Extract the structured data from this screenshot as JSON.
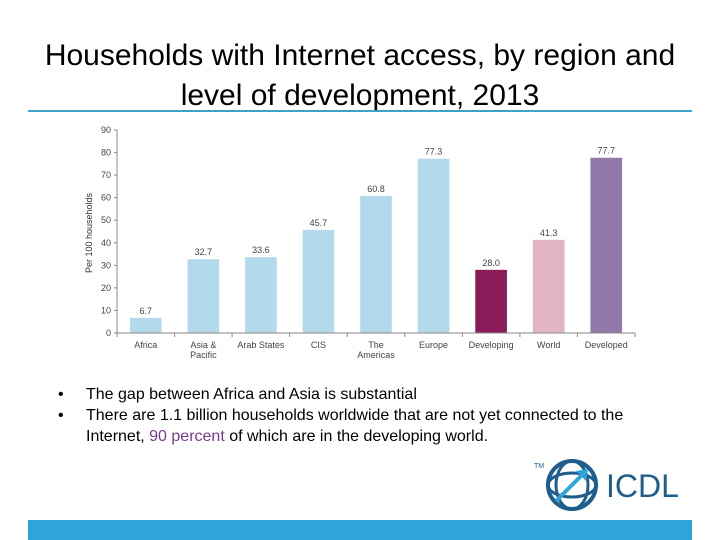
{
  "slide": {
    "title": "Households with Internet access, by region and level of development, 2013",
    "bullets": [
      {
        "text": "The gap between Africa and Asia is substantial"
      },
      {
        "before": "There are 1.1 billion households worldwide that are not yet connected to the Internet, ",
        "highlight": "90 percent",
        "after": " of which are in the developing world."
      }
    ],
    "logo": {
      "text": "ICDL",
      "tm": "TM",
      "icon": "globe-arrow-icon"
    }
  },
  "colors": {
    "region_bar": "#b3d9ec",
    "developing": "#8b1a58",
    "world": "#e3b3c6",
    "developed": "#9378aa",
    "accent": "#2ea4d8",
    "highlight": "#7a3a8c"
  },
  "chart_data": {
    "type": "bar",
    "title": "",
    "xlabel": "",
    "ylabel": "Per 100 households",
    "ylim": [
      0,
      90
    ],
    "yticks": [
      0,
      10,
      20,
      30,
      40,
      50,
      60,
      70,
      80,
      90
    ],
    "grid": false,
    "legend": "none",
    "categories": [
      [
        "Africa"
      ],
      [
        "Asia &",
        "Pacific"
      ],
      [
        "Arab States"
      ],
      [
        "CIS"
      ],
      [
        "The",
        "Americas"
      ],
      [
        "Europe"
      ],
      [
        "Developing"
      ],
      [
        "World"
      ],
      [
        "Developed"
      ]
    ],
    "values": [
      6.7,
      32.7,
      33.6,
      45.7,
      60.8,
      77.3,
      28.0,
      41.3,
      77.7
    ],
    "data_labels": [
      "6.7",
      "32.7",
      "33.6",
      "45.7",
      "60.8",
      "77.3",
      "28.0",
      "41.3",
      "77.7"
    ],
    "bar_colors": [
      "#b3d9ec",
      "#b3d9ec",
      "#b3d9ec",
      "#b3d9ec",
      "#b3d9ec",
      "#b3d9ec",
      "#8b1a58",
      "#e3b3c6",
      "#9378aa"
    ]
  }
}
